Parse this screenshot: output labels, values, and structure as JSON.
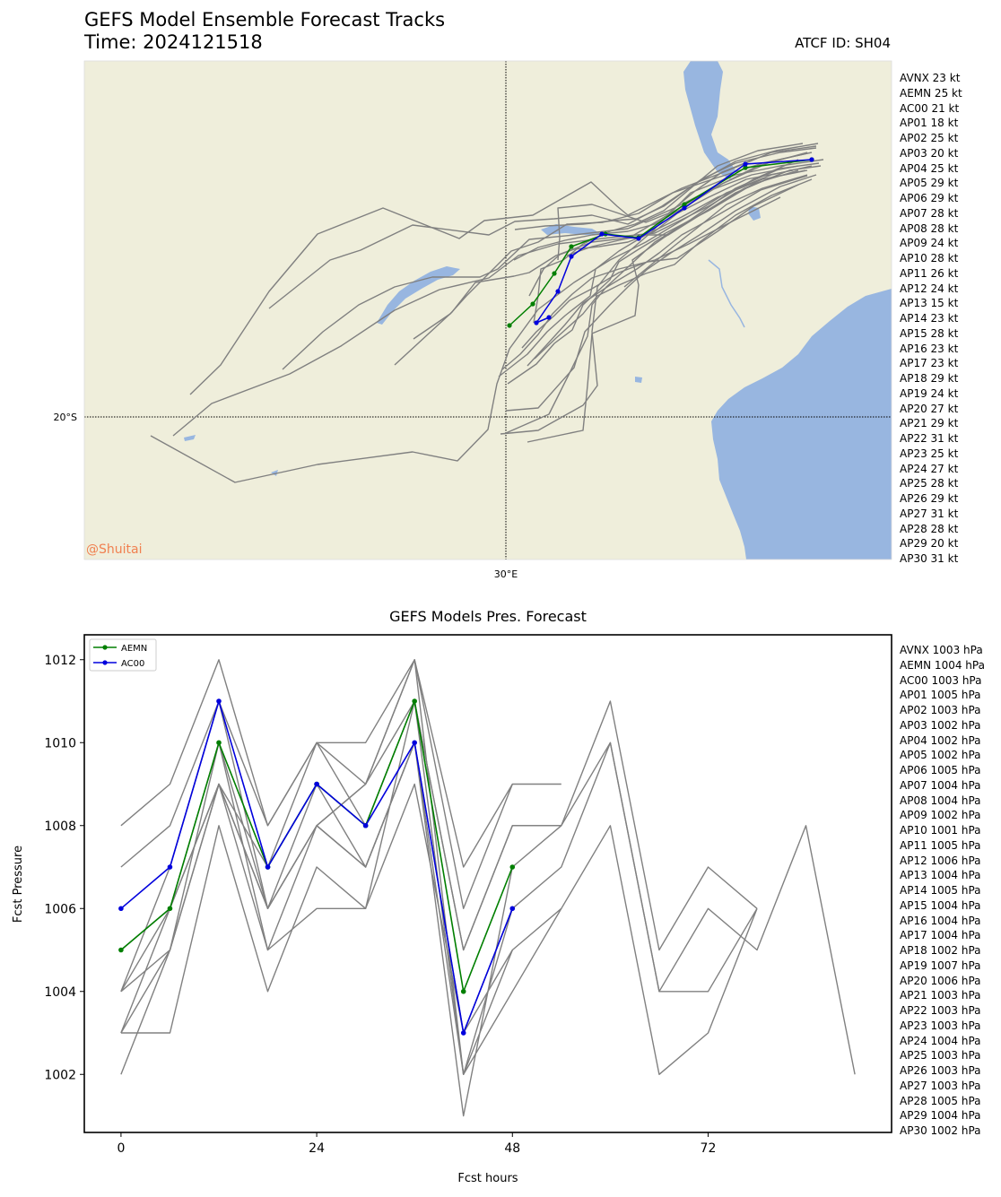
{
  "map": {
    "title": "GEFS Model Ensemble Forecast Tracks",
    "time": "Time: 2024121518",
    "atcf": "ATCF ID: SH04",
    "lon_label": "30°E",
    "lat_label": "20°S",
    "watermark": "@Shuitai",
    "colors": {
      "land": "#efeedb",
      "water": "#98b6e0",
      "track": "#808080",
      "aemn": "#007f00",
      "ac00": "#0000dd"
    },
    "wind_list": [
      "AVNX 23 kt",
      "AEMN 25 kt",
      "AC00 21 kt",
      "AP01 18 kt",
      "AP02 25 kt",
      "AP03 20 kt",
      "AP04 25 kt",
      "AP05 29 kt",
      "AP06 29 kt",
      "AP07 28 kt",
      "AP08 28 kt",
      "AP09 24 kt",
      "AP10 28 kt",
      "AP11 26 kt",
      "AP12 24 kt",
      "AP13 15 kt",
      "AP14 23 kt",
      "AP15 28 kt",
      "AP16 23 kt",
      "AP17 23 kt",
      "AP18 29 kt",
      "AP19 24 kt",
      "AP20 27 kt",
      "AP21 29 kt",
      "AP22 31 kt",
      "AP23 25 kt",
      "AP24 27 kt",
      "AP25 28 kt",
      "AP26 29 kt",
      "AP27 31 kt",
      "AP28 28 kt",
      "AP29 20 kt",
      "AP30 31 kt"
    ]
  },
  "chart_data": {
    "type": "line",
    "title": "GEFS Models Pres. Forecast",
    "xlabel": "Fcst hours",
    "ylabel": "Fcst Pressure",
    "xlim": [
      -4.5,
      94.5
    ],
    "ylim": [
      1000.6,
      1012.6
    ],
    "xticks": [
      0,
      24,
      48,
      72
    ],
    "yticks": [
      1002,
      1004,
      1006,
      1008,
      1010,
      1012
    ],
    "legend": {
      "position": "top-left",
      "entries": [
        "AEMN",
        "AC00"
      ]
    },
    "highlight": [
      {
        "name": "AEMN",
        "color": "#007f00",
        "x": [
          0,
          6,
          12,
          18,
          24,
          30,
          36,
          42,
          48
        ],
        "y": [
          1005,
          1006,
          1010,
          1007,
          1009,
          1008,
          1011,
          1004,
          1007
        ]
      },
      {
        "name": "AC00",
        "color": "#0000dd",
        "x": [
          0,
          6,
          12,
          18,
          24,
          30,
          36,
          42,
          48
        ],
        "y": [
          1006,
          1007,
          1011,
          1007,
          1009,
          1008,
          1010,
          1003,
          1006
        ]
      }
    ],
    "members": [
      {
        "x": [
          0,
          6,
          12,
          18,
          24,
          30,
          36,
          42,
          48
        ],
        "y": [
          1008,
          1009,
          1012,
          1008,
          1010,
          1010,
          1012,
          1007,
          1009
        ]
      },
      {
        "x": [
          0,
          6,
          12,
          18,
          24,
          30,
          36,
          42,
          48,
          54
        ],
        "y": [
          1007,
          1008,
          1011,
          1008,
          1010,
          1009,
          1012,
          1006,
          1009,
          1009
        ]
      },
      {
        "x": [
          0,
          6,
          12,
          18,
          24,
          30,
          36,
          42,
          48,
          54,
          60,
          66,
          72,
          78
        ],
        "y": [
          1004,
          1006,
          1010,
          1006,
          1008,
          1009,
          1011,
          1005,
          1008,
          1008,
          1011,
          1005,
          1007,
          1006
        ]
      },
      {
        "x": [
          0,
          6,
          12,
          18,
          24,
          30,
          36,
          42,
          48,
          54,
          60,
          66,
          72,
          78,
          84,
          90
        ],
        "y": [
          1003,
          1005,
          1009,
          1005,
          1008,
          1007,
          1010,
          1002,
          1006,
          1007,
          1010,
          1004,
          1006,
          1005,
          1008,
          1002
        ]
      },
      {
        "x": [
          0,
          6,
          12,
          18,
          24,
          30,
          36,
          42,
          48,
          54,
          60,
          66,
          72,
          78
        ],
        "y": [
          1003,
          1003,
          1008,
          1004,
          1007,
          1006,
          1009,
          1003,
          1005,
          1006,
          1008,
          1002,
          1003,
          1006
        ]
      },
      {
        "x": [
          0,
          6,
          12,
          18,
          24,
          30,
          36,
          42,
          48,
          54,
          60,
          66,
          72,
          78
        ],
        "y": [
          1004,
          1005,
          1009,
          1006,
          1008,
          1007,
          1010,
          1001,
          1007,
          1008,
          1010,
          1004,
          1004,
          1006
        ]
      },
      {
        "x": [
          0,
          6,
          12,
          18,
          24,
          30,
          36,
          42,
          48,
          54
        ],
        "y": [
          1005,
          1006,
          1009,
          1007,
          1010,
          1008,
          1011,
          1005,
          1008,
          1008
        ]
      },
      {
        "x": [
          0,
          6,
          12,
          18,
          24,
          30,
          36,
          42,
          48,
          54
        ],
        "y": [
          1002,
          1005,
          1010,
          1005,
          1006,
          1006,
          1011,
          1002,
          1004,
          1006
        ]
      },
      {
        "x": [
          0,
          6,
          12,
          18,
          24,
          30,
          36,
          42,
          48
        ],
        "y": [
          1003,
          1006,
          1009,
          1006,
          1008,
          1009,
          1012,
          1002,
          1005
        ]
      },
      {
        "x": [
          0,
          6,
          12,
          18,
          24,
          30,
          36,
          42,
          48
        ],
        "y": [
          1004,
          1007,
          1011,
          1006,
          1009,
          1007,
          1010,
          1003,
          1006
        ]
      }
    ],
    "pressure_list": [
      "AVNX 1003 hPa",
      "AEMN 1004 hPa",
      "AC00 1003 hPa",
      "AP01 1005 hPa",
      "AP02 1003 hPa",
      "AP03 1002 hPa",
      "AP04 1002 hPa",
      "AP05 1002 hPa",
      "AP06 1005 hPa",
      "AP07 1004 hPa",
      "AP08 1004 hPa",
      "AP09 1002 hPa",
      "AP10 1001 hPa",
      "AP11 1005 hPa",
      "AP12 1006 hPa",
      "AP13 1004 hPa",
      "AP14 1005 hPa",
      "AP15 1004 hPa",
      "AP16 1004 hPa",
      "AP17 1004 hPa",
      "AP18 1002 hPa",
      "AP19 1007 hPa",
      "AP20 1006 hPa",
      "AP21 1003 hPa",
      "AP22 1003 hPa",
      "AP23 1003 hPa",
      "AP24 1004 hPa",
      "AP25 1003 hPa",
      "AP26 1003 hPa",
      "AP27 1003 hPa",
      "AP28 1005 hPa",
      "AP29 1004 hPa",
      "AP30 1002 hPa"
    ]
  }
}
